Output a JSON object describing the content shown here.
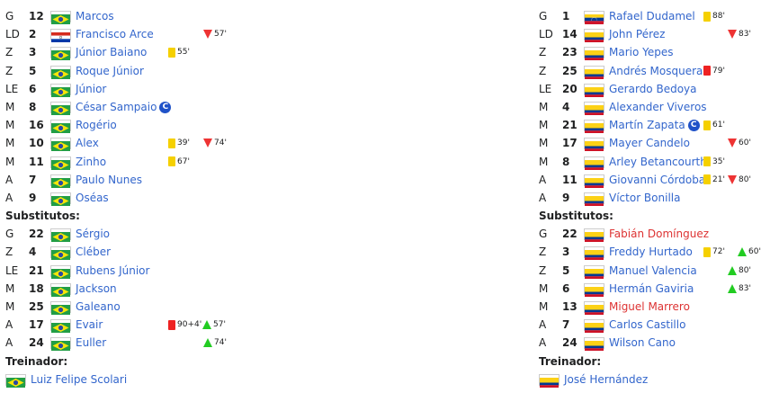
{
  "brazil": {
    "starters": [
      {
        "pos": "G",
        "num": "12",
        "name": "Marcos",
        "ev": []
      },
      {
        "pos": "LD",
        "num": "2",
        "name": "Francisco Arce",
        "flag": "paraguay",
        "ev": [
          {
            "t": "out",
            "m": "57'"
          }
        ]
      },
      {
        "pos": "Z",
        "num": "3",
        "name": "Júnior Baiano",
        "ev": [
          {
            "t": "yellow",
            "m": "55'"
          }
        ]
      },
      {
        "pos": "Z",
        "num": "5",
        "name": "Roque Júnior",
        "ev": []
      },
      {
        "pos": "LE",
        "num": "6",
        "name": "Júnior",
        "ev": []
      },
      {
        "pos": "M",
        "num": "8",
        "name": "César Sampaio",
        "captain": "C",
        "ev": []
      },
      {
        "pos": "M",
        "num": "16",
        "name": "Rogério",
        "ev": []
      },
      {
        "pos": "M",
        "num": "10",
        "name": "Alex",
        "ev": [
          {
            "t": "yellow",
            "m": "39'"
          },
          {
            "t": "out",
            "m": "74'"
          }
        ]
      },
      {
        "pos": "M",
        "num": "11",
        "name": "Zinho",
        "ev": [
          {
            "t": "yellow",
            "m": "67'"
          }
        ]
      },
      {
        "pos": "A",
        "num": "7",
        "name": "Paulo Nunes",
        "ev": []
      },
      {
        "pos": "A",
        "num": "9",
        "name": "Oséas",
        "ev": []
      }
    ],
    "subs_label": "Substitutos:",
    "subs": [
      {
        "pos": "G",
        "num": "22",
        "name": "Sérgio",
        "ev": []
      },
      {
        "pos": "Z",
        "num": "4",
        "name": "Cléber",
        "ev": []
      },
      {
        "pos": "LE",
        "num": "21",
        "name": "Rubens Júnior",
        "ev": []
      },
      {
        "pos": "M",
        "num": "18",
        "name": "Jackson",
        "ev": []
      },
      {
        "pos": "M",
        "num": "25",
        "name": "Galeano",
        "ev": []
      },
      {
        "pos": "A",
        "num": "17",
        "name": "Evair",
        "ev": [
          {
            "t": "red",
            "m": "90+4'"
          },
          {
            "t": "in",
            "m": "57'"
          }
        ]
      },
      {
        "pos": "A",
        "num": "24",
        "name": "Euller",
        "ev": [
          {
            "t": "in",
            "m": "74'"
          }
        ]
      }
    ],
    "coach_label": "Treinador:",
    "coach": "Luiz Felipe Scolari"
  },
  "colombia": {
    "starters": [
      {
        "pos": "G",
        "num": "1",
        "name": "Rafael Dudamel",
        "flag": "venezuela",
        "ev": [
          {
            "t": "yellow",
            "m": "88'"
          }
        ]
      },
      {
        "pos": "LD",
        "num": "14",
        "name": "John Pérez",
        "ev": [
          {
            "t": "out",
            "m": "83'"
          }
        ]
      },
      {
        "pos": "Z",
        "num": "23",
        "name": "Mario Yepes",
        "ev": []
      },
      {
        "pos": "Z",
        "num": "25",
        "name": "Andrés Mosquera",
        "ev": [
          {
            "t": "red",
            "m": "79'"
          }
        ]
      },
      {
        "pos": "LE",
        "num": "20",
        "name": "Gerardo Bedoya",
        "ev": []
      },
      {
        "pos": "M",
        "num": "4",
        "name": "Alexander Viveros",
        "ev": []
      },
      {
        "pos": "M",
        "num": "21",
        "name": "Martín Zapata",
        "captain": "C",
        "ev": [
          {
            "t": "yellow",
            "m": "61'"
          }
        ]
      },
      {
        "pos": "M",
        "num": "17",
        "name": "Mayer Candelo",
        "ev": [
          {
            "t": "out",
            "m": "60'"
          }
        ]
      },
      {
        "pos": "M",
        "num": "8",
        "name": "Arley Betancourth",
        "ev": [
          {
            "t": "yellow",
            "m": "35'"
          }
        ]
      },
      {
        "pos": "A",
        "num": "11",
        "name": "Giovanni Córdoba",
        "ev": [
          {
            "t": "yellow",
            "m": "21'"
          },
          {
            "t": "out",
            "m": "80'"
          }
        ]
      },
      {
        "pos": "A",
        "num": "9",
        "name": "Víctor Bonilla",
        "ev": []
      }
    ],
    "subs_label": "Substitutos:",
    "subs": [
      {
        "pos": "G",
        "num": "22",
        "name": "Fabián Domínguez",
        "red_link": true,
        "ev": []
      },
      {
        "pos": "Z",
        "num": "3",
        "name": "Freddy Hurtado",
        "ev": [
          {
            "t": "yellow",
            "m": "72'"
          },
          {
            "t": "in",
            "m": "60'"
          }
        ]
      },
      {
        "pos": "Z",
        "num": "5",
        "name": "Manuel Valencia",
        "ev": [
          {
            "t": "in",
            "m": "80'"
          }
        ]
      },
      {
        "pos": "M",
        "num": "6",
        "name": "Hermán Gaviria",
        "ev": [
          {
            "t": "in",
            "m": "83'"
          }
        ]
      },
      {
        "pos": "M",
        "num": "13",
        "name": "Miguel Marrero",
        "red_link": true,
        "ev": []
      },
      {
        "pos": "A",
        "num": "7",
        "name": "Carlos Castillo",
        "ev": []
      },
      {
        "pos": "A",
        "num": "24",
        "name": "Wilson Cano",
        "ev": []
      }
    ],
    "coach_label": "Treinador:",
    "coach": "José Hernández"
  }
}
